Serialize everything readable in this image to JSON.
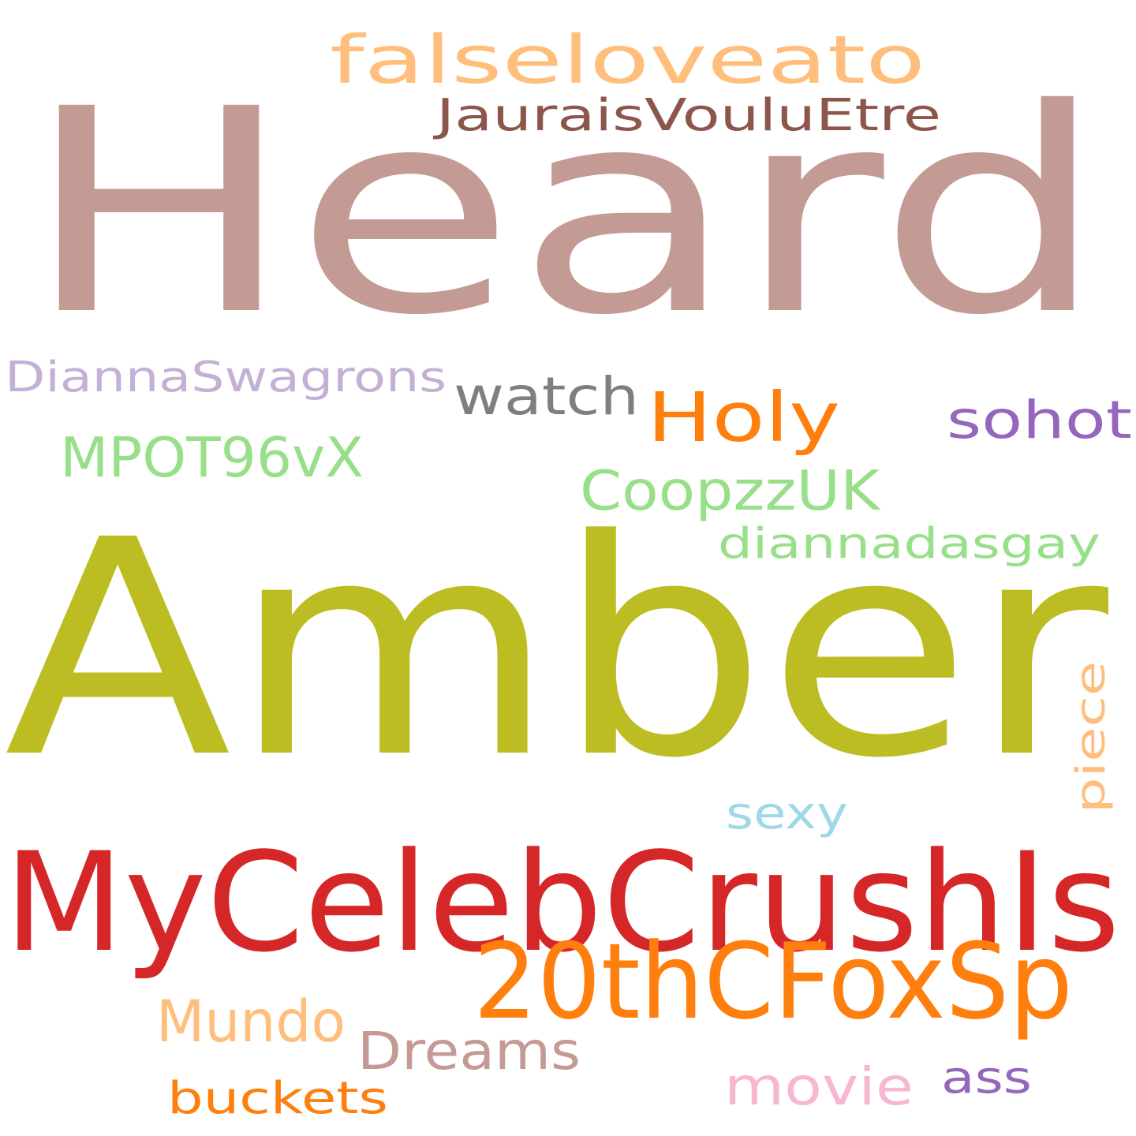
{
  "words": [
    {
      "text": "Heard",
      "color": "#c49a94"
    },
    {
      "text": "falseloveato",
      "color": "#ffbe7b"
    },
    {
      "text": "JauraisVouluEtre",
      "color": "#8c564b"
    },
    {
      "text": "DiannaSwagrons",
      "color": "#c5b0d5"
    },
    {
      "text": "watch",
      "color": "#7f7f7f"
    },
    {
      "text": "Holy",
      "color": "#ff7f0e"
    },
    {
      "text": "sohot",
      "color": "#9467bd"
    },
    {
      "text": "MPOT96vX",
      "color": "#98df8a"
    },
    {
      "text": "CoopzzUK",
      "color": "#98df8a"
    },
    {
      "text": "diannadasgay",
      "color": "#98df8a"
    },
    {
      "text": "Amber",
      "color": "#bcbd22"
    },
    {
      "text": "piece",
      "color": "#ffbe7b"
    },
    {
      "text": "sexy",
      "color": "#9edae5"
    },
    {
      "text": "MyCelebCrushIs",
      "color": "#d62728"
    },
    {
      "text": "20thCFoxSp",
      "color": "#ff7f0e"
    },
    {
      "text": "Mundo",
      "color": "#ffbe7b"
    },
    {
      "text": "Dreams",
      "color": "#c49a94"
    },
    {
      "text": "movie",
      "color": "#f7b6d2"
    },
    {
      "text": "ass",
      "color": "#9467bd"
    },
    {
      "text": "buckets",
      "color": "#ff7f0e"
    }
  ]
}
